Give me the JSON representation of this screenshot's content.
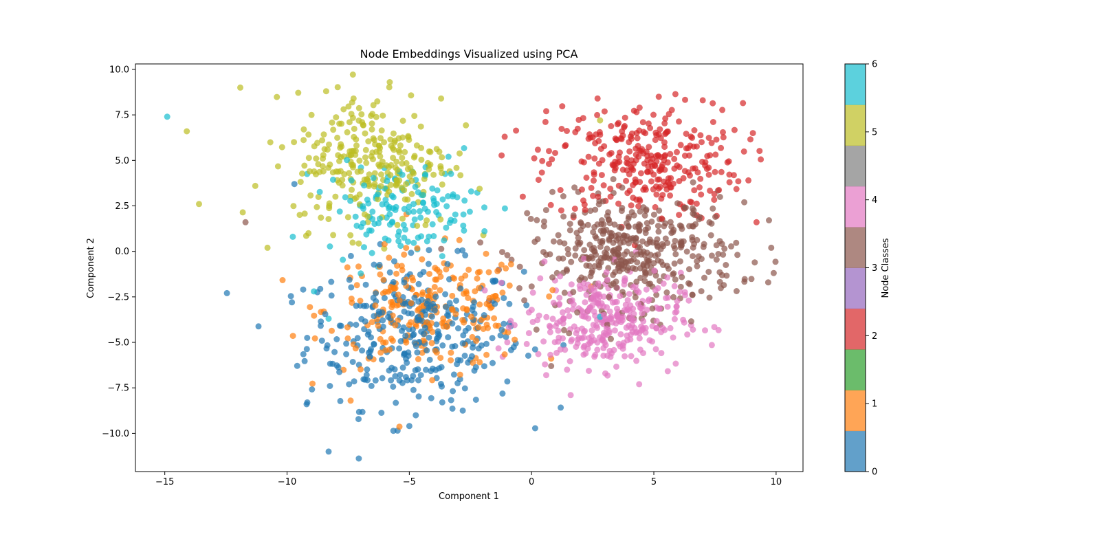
{
  "chart_data": {
    "type": "scatter",
    "title": "Node Embeddings Visualized using PCA",
    "xlabel": "Component 1",
    "ylabel": "Component 2",
    "xlim": [
      -16.2,
      11.1
    ],
    "ylim": [
      -12.1,
      10.3
    ],
    "xticks": [
      -15,
      -10,
      -5,
      0,
      5,
      10
    ],
    "xtick_labels": [
      "−15",
      "−10",
      "−5",
      "0",
      "5",
      "10"
    ],
    "yticks": [
      -10,
      -7.5,
      -5,
      -2.5,
      0,
      2.5,
      5,
      7.5,
      10
    ],
    "ytick_labels": [
      "−10.0",
      "−7.5",
      "−5.0",
      "−2.5",
      "0.0",
      "2.5",
      "5.0",
      "7.5",
      "10.0"
    ],
    "grid": false,
    "marker_alpha": 0.7,
    "colorbar": {
      "label": "Node Classes",
      "ticks": [
        0,
        1,
        2,
        3,
        4,
        5,
        6
      ],
      "tick_labels": [
        "0",
        "1",
        "2",
        "3",
        "4",
        "5",
        "6"
      ],
      "colormap": "tab10",
      "range": [
        0,
        6
      ],
      "bands": [
        "#1f77b4",
        "#ff7f0e",
        "#2ca02c",
        "#d62728",
        "#9467bd",
        "#8c564b",
        "#e377c2",
        "#7f7f7f",
        "#bcbd22",
        "#17becf"
      ]
    },
    "classes": [
      {
        "class": 0,
        "color": "#1f77b4",
        "center": [
          -4.8,
          -4.6
        ],
        "spread": [
          2.2,
          2.0
        ],
        "count": 330,
        "extra_points": [
          [
            -8.3,
            -11.0
          ],
          [
            -9.2,
            -8.4
          ],
          [
            -9.8,
            -2.8
          ],
          [
            -5.0,
            -9.6
          ],
          [
            -9.7,
            3.7
          ]
        ]
      },
      {
        "class": 1,
        "color": "#ff7f0e",
        "center": [
          -4.2,
          -3.2
        ],
        "spread": [
          2.1,
          1.6
        ],
        "count": 240,
        "extra_points": [
          [
            -7.4,
            -8.2
          ],
          [
            -4.5,
            -3.6
          ],
          [
            -4.3,
            -3.9
          ]
        ]
      },
      {
        "class": 2,
        "color": "#d62728",
        "center": [
          4.6,
          4.9
        ],
        "spread": [
          2.0,
          1.6
        ],
        "count": 300,
        "extra_points": [
          [
            5.2,
            8.5
          ],
          [
            7.0,
            8.3
          ],
          [
            2.7,
            8.4
          ],
          [
            9.2,
            1.6
          ],
          [
            -1.1,
            6.3
          ],
          [
            0.6,
            7.7
          ]
        ]
      },
      {
        "class": 3,
        "color": "#8c564b",
        "center": [
          4.2,
          -0.1
        ],
        "spread": [
          2.1,
          1.5
        ],
        "count": 420,
        "extra_points": [
          [
            -11.7,
            1.6
          ],
          [
            9.8,
            0.2
          ],
          [
            8.7,
            2.7
          ],
          [
            0.8,
            -6.3
          ],
          [
            0.2,
            -4.3
          ]
        ]
      },
      {
        "class": 4,
        "color": "#e377c2",
        "center": [
          2.9,
          -3.8
        ],
        "spread": [
          1.6,
          1.3
        ],
        "count": 320,
        "extra_points": [
          [
            1.6,
            -7.9
          ],
          [
            0.6,
            -6.8
          ],
          [
            6.6,
            -4.3
          ],
          [
            4.4,
            -7.3
          ]
        ]
      },
      {
        "class": 5,
        "color": "#bcbd22",
        "center": [
          -6.5,
          5.0
        ],
        "spread": [
          1.6,
          1.9
        ],
        "count": 270,
        "extra_points": [
          [
            -14.1,
            6.6
          ],
          [
            -13.6,
            2.6
          ],
          [
            -10.8,
            0.2
          ],
          [
            -5.8,
            9.3
          ],
          [
            -8.4,
            8.8
          ],
          [
            -3.7,
            8.4
          ],
          [
            -11.3,
            3.6
          ],
          [
            2.8,
            7.2
          ]
        ]
      },
      {
        "class": 6,
        "color": "#17becf",
        "center": [
          -5.3,
          2.4
        ],
        "spread": [
          1.6,
          1.2
        ],
        "count": 140,
        "extra_points": [
          [
            -14.9,
            7.4
          ],
          [
            -8.3,
            -3.7
          ],
          [
            -8.9,
            -2.2
          ],
          [
            -3.4,
            5.2
          ],
          [
            2.8,
            -3.6
          ]
        ]
      }
    ]
  }
}
